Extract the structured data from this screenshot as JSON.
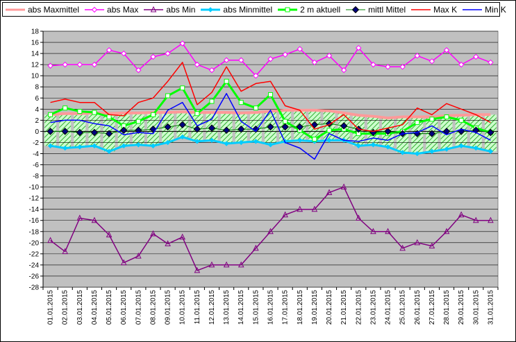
{
  "chart_data": {
    "type": "line",
    "title": "",
    "xlabel": "",
    "ylabel": "",
    "ylim": [
      -28,
      18
    ],
    "ystep": 2,
    "grid": true,
    "legend_placement": "top",
    "plot_background": "#c0c0c0",
    "categories": [
      "01.01.2015",
      "02.01.2015",
      "03.01.2015",
      "04.01.2015",
      "05.01.2015",
      "06.01.2015",
      "07.01.2015",
      "08.01.2015",
      "09.01.2015",
      "10.01.2015",
      "11.01.2015",
      "12.01.2015",
      "13.01.2015",
      "14.01.2015",
      "15.01.2015",
      "16.01.2015",
      "17.01.2015",
      "18.01.2015",
      "19.01.2015",
      "20.01.2015",
      "21.01.2015",
      "22.01.2015",
      "23.01.2015",
      "24.01.2015",
      "25.01.2015",
      "26.01.2015",
      "27.01.2015",
      "28.01.2015",
      "29.01.2015",
      "30.01.2015",
      "31.01.2015"
    ],
    "series": [
      {
        "name": "abs Maxmittel",
        "color": "#ff9999",
        "marker": "none",
        "width": 4,
        "values": [
          3.0,
          3.2,
          3.2,
          3.3,
          3.2,
          3.3,
          3.3,
          3.4,
          3.4,
          3.5,
          3.4,
          3.4,
          3.4,
          3.3,
          3.4,
          3.6,
          3.8,
          3.8,
          3.8,
          3.7,
          3.3,
          2.9,
          2.7,
          2.4,
          2.6,
          2.6,
          2.6,
          2.8,
          2.9,
          3.0,
          3.0
        ]
      },
      {
        "name": "abs Max",
        "color": "#ff00ff",
        "marker": "diamond-open",
        "width": 1.5,
        "values": [
          11.8,
          12.0,
          12.0,
          12.0,
          14.6,
          14.0,
          11.0,
          13.4,
          14.0,
          15.8,
          12.0,
          11.0,
          12.8,
          12.8,
          10.0,
          13.0,
          13.8,
          14.8,
          12.4,
          13.6,
          11.0,
          15.0,
          12.0,
          11.6,
          11.6,
          13.6,
          12.6,
          14.6,
          12.0,
          13.4,
          12.4
        ]
      },
      {
        "name": "abs Min",
        "color": "#800080",
        "marker": "triangle-open",
        "width": 1.5,
        "values": [
          -19.6,
          -21.6,
          -15.6,
          -16.0,
          -18.6,
          -23.6,
          -22.4,
          -18.4,
          -20.2,
          -19.0,
          -25.0,
          -24.0,
          -24.0,
          -24.0,
          -21.0,
          -18.0,
          -15.0,
          -14.0,
          -14.0,
          -11.0,
          -10.0,
          -15.6,
          -18.0,
          -18.0,
          -21.0,
          -20.0,
          -20.6,
          -18.0,
          -15.0,
          -16.0,
          -16.0
        ]
      },
      {
        "name": "abs Minmittel",
        "color": "#00ccff",
        "marker": "diamond-small",
        "width": 3,
        "values": [
          -2.6,
          -3.0,
          -2.8,
          -2.6,
          -3.6,
          -2.6,
          -2.4,
          -2.6,
          -2.0,
          -1.0,
          -1.8,
          -1.6,
          -2.2,
          -2.0,
          -1.8,
          -2.4,
          -1.8,
          -1.6,
          -1.8,
          -1.6,
          -1.6,
          -2.6,
          -2.4,
          -2.8,
          -3.8,
          -4.0,
          -3.6,
          -3.2,
          -2.6,
          -3.0,
          -3.6
        ]
      },
      {
        "name": "2 m aktuell",
        "color": "#00ff00",
        "marker": "square-open",
        "width": 3,
        "values": [
          3.0,
          4.2,
          3.6,
          3.4,
          2.6,
          1.0,
          1.8,
          3.0,
          6.4,
          7.8,
          3.2,
          5.4,
          9.0,
          5.2,
          4.2,
          6.6,
          1.8,
          0.2,
          -1.4,
          0.2,
          0.4,
          -0.4,
          -0.4,
          -0.4,
          0.0,
          1.6,
          2.2,
          2.6,
          2.0,
          0.6,
          -0.2
        ]
      },
      {
        "name": "mittl Mittel",
        "color": "#000080",
        "marker": "diamond-filled",
        "width": 1,
        "values": [
          0.0,
          0.0,
          -0.2,
          -0.2,
          -0.4,
          0.2,
          0.2,
          0.4,
          0.8,
          1.2,
          0.4,
          0.6,
          0.2,
          0.4,
          0.4,
          0.8,
          0.8,
          0.8,
          1.2,
          1.4,
          1.0,
          0.4,
          -0.2,
          0.0,
          -0.4,
          -0.4,
          -0.4,
          0.0,
          0.0,
          0.2,
          -0.2
        ]
      },
      {
        "name": "Max K",
        "color": "#ff0000",
        "marker": "none",
        "width": 1.5,
        "values": [
          5.2,
          5.8,
          5.2,
          5.2,
          3.0,
          2.8,
          5.2,
          6.0,
          9.0,
          12.4,
          4.8,
          7.0,
          11.6,
          7.2,
          8.6,
          9.0,
          4.6,
          3.8,
          0.4,
          1.2,
          3.0,
          0.4,
          0.0,
          0.6,
          1.2,
          4.2,
          3.0,
          5.0,
          4.0,
          3.0,
          1.6
        ]
      },
      {
        "name": "Min K",
        "color": "#0000ff",
        "marker": "none",
        "width": 1.5,
        "values": [
          1.6,
          2.0,
          2.0,
          1.4,
          1.0,
          -0.6,
          -0.2,
          -0.4,
          3.8,
          5.2,
          1.0,
          2.2,
          6.8,
          1.8,
          0.0,
          3.8,
          -2.0,
          -3.0,
          -5.0,
          -0.4,
          -1.6,
          -1.8,
          -1.2,
          -1.6,
          -0.4,
          -0.2,
          1.0,
          -0.6,
          0.4,
          -0.2,
          -1.6
        ]
      }
    ]
  }
}
